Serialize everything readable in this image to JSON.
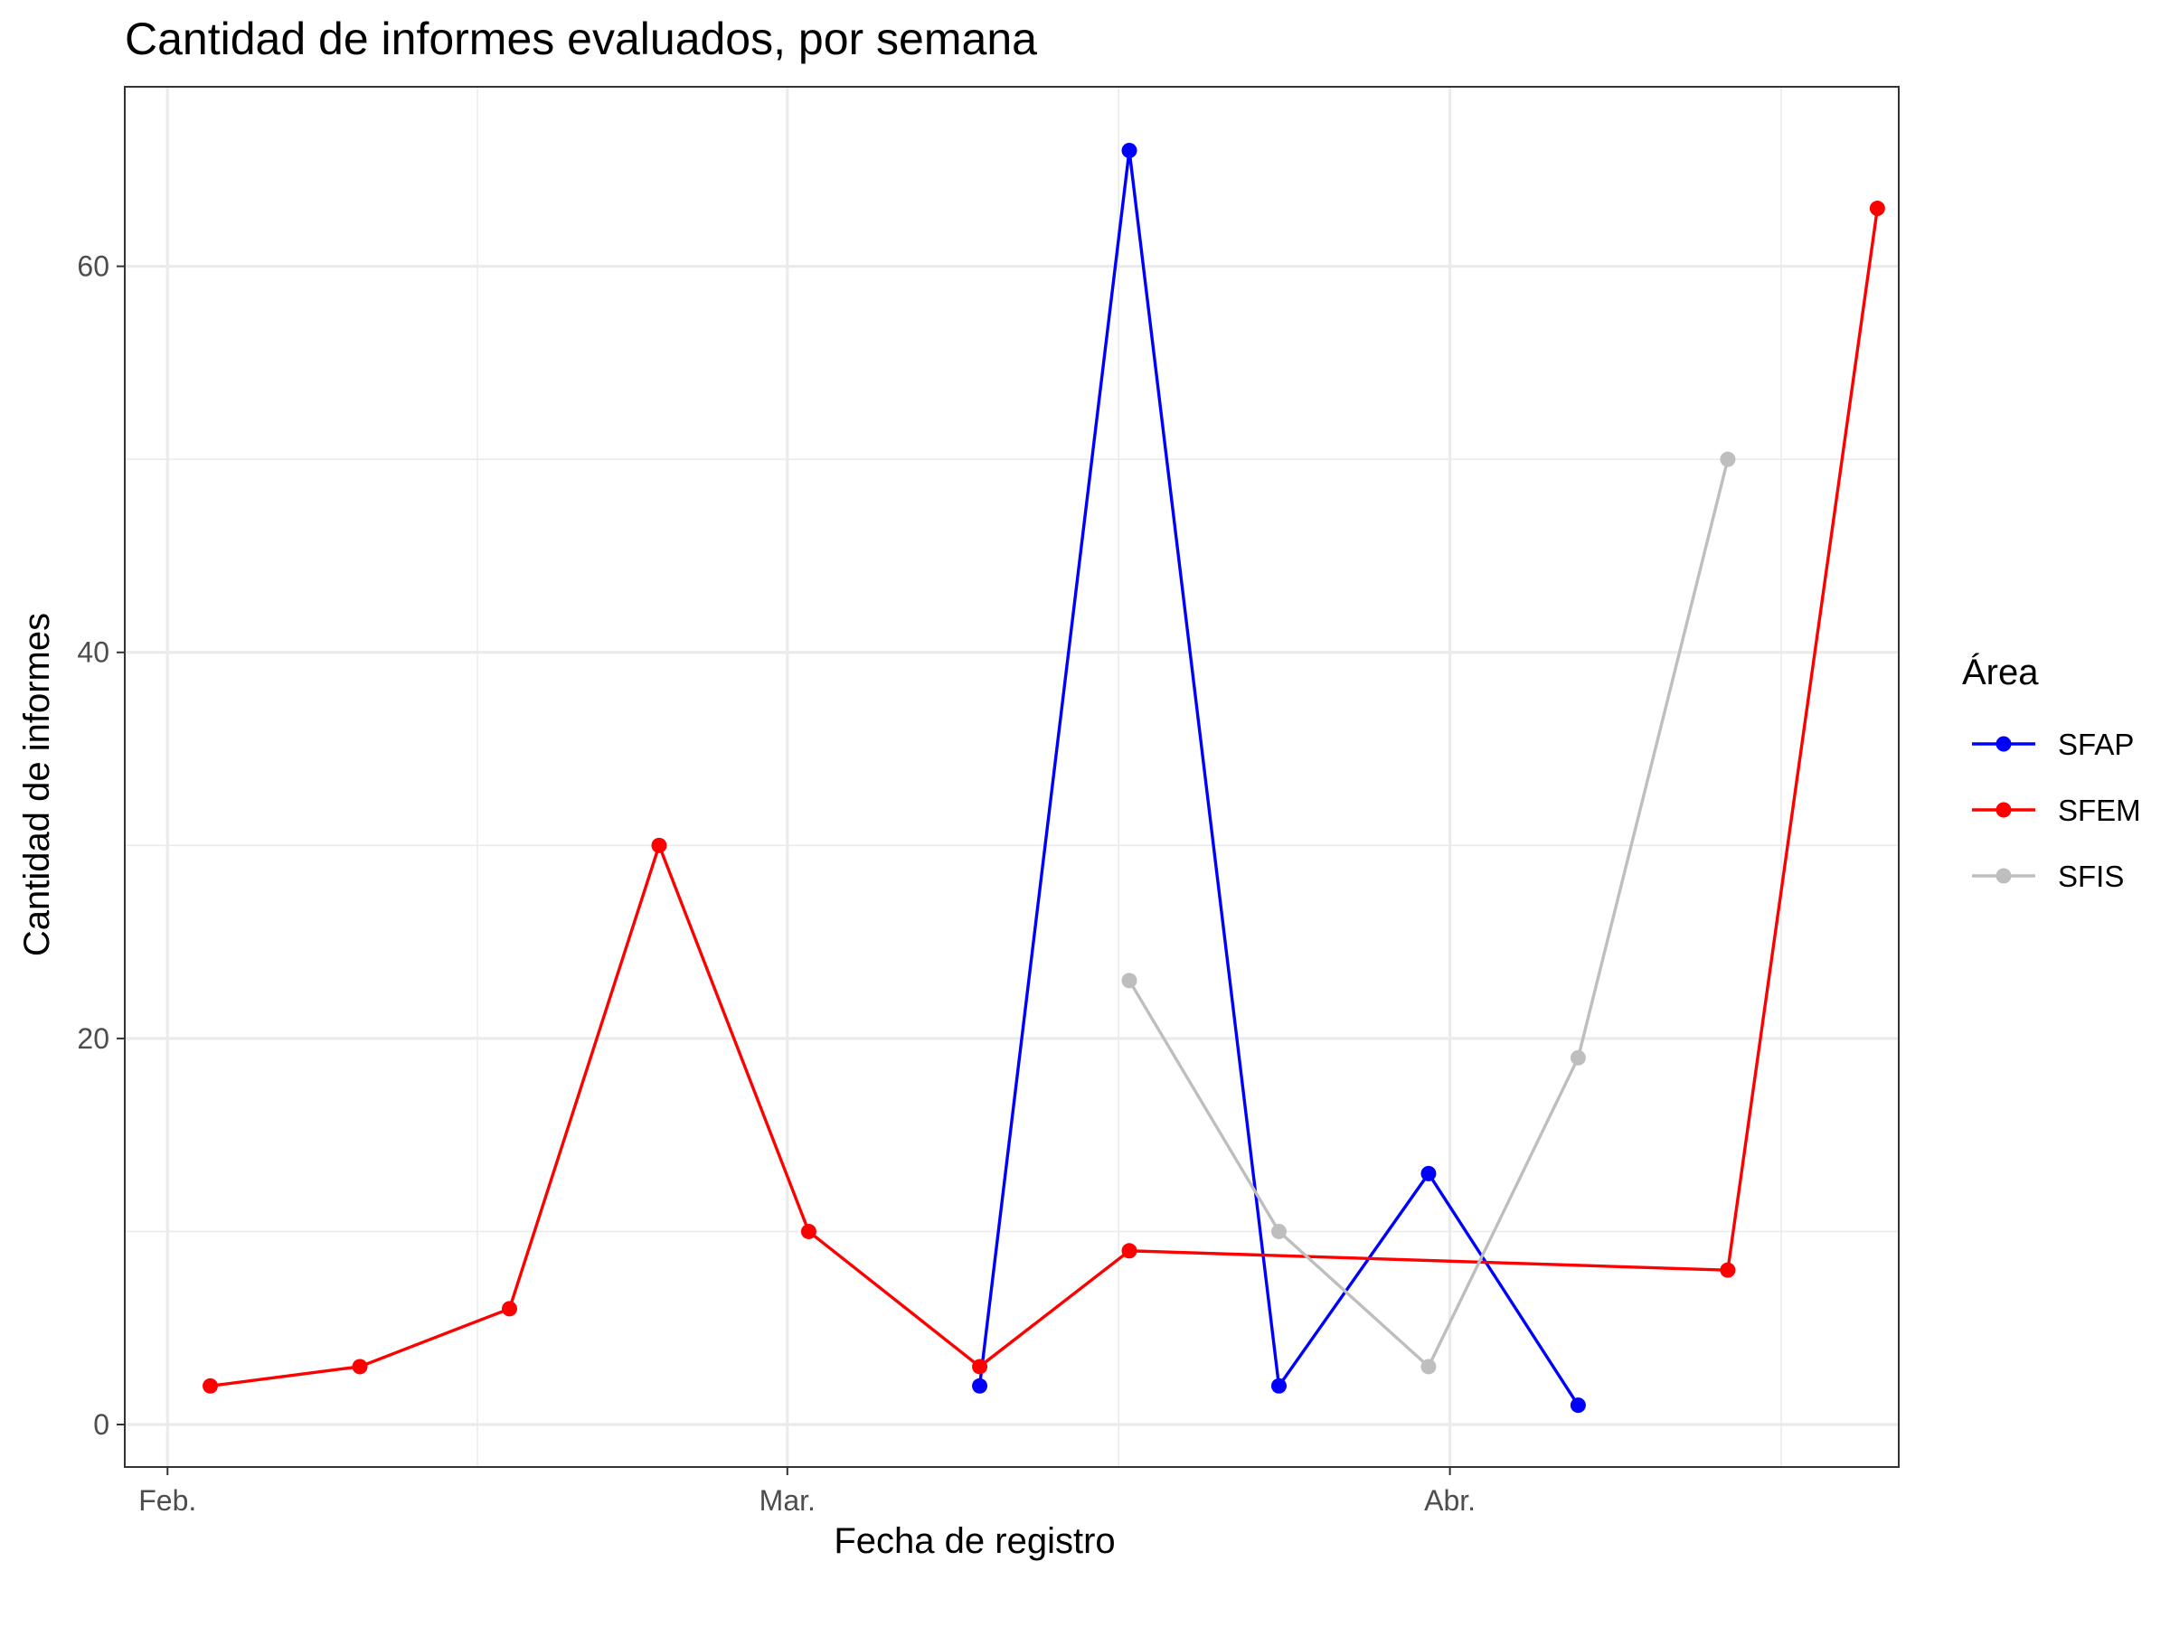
{
  "chart_data": {
    "type": "line",
    "title": "Cantidad de informes evaluados, por semana",
    "xlabel": "Fecha de registro",
    "ylabel": "Cantidad de informes",
    "x_ticks": [
      {
        "date": "2024-02-01",
        "label": "Feb."
      },
      {
        "date": "2024-03-01",
        "label": "Mar."
      },
      {
        "date": "2024-04-01",
        "label": "Abr."
      }
    ],
    "x_range": [
      "2024-01-30",
      "2024-04-22"
    ],
    "y_ticks": [
      0,
      20,
      40,
      60
    ],
    "ylim": [
      -2.2,
      69.3
    ],
    "grid": true,
    "legend": {
      "title": "Área",
      "position": "right"
    },
    "series": [
      {
        "name": "SFAP",
        "color": "#0000FF",
        "points": [
          {
            "x": "2024-03-10",
            "y": 2
          },
          {
            "x": "2024-03-17",
            "y": 66
          },
          {
            "x": "2024-03-24",
            "y": 2
          },
          {
            "x": "2024-03-31",
            "y": 13
          },
          {
            "x": "2024-04-07",
            "y": 1
          }
        ]
      },
      {
        "name": "SFEM",
        "color": "#FF0000",
        "points": [
          {
            "x": "2024-02-03",
            "y": 2
          },
          {
            "x": "2024-02-10",
            "y": 3
          },
          {
            "x": "2024-02-17",
            "y": 6
          },
          {
            "x": "2024-02-24",
            "y": 30
          },
          {
            "x": "2024-03-02",
            "y": 10
          },
          {
            "x": "2024-03-10",
            "y": 3
          },
          {
            "x": "2024-03-17",
            "y": 9
          },
          {
            "x": "2024-04-14",
            "y": 8
          },
          {
            "x": "2024-04-21",
            "y": 63
          }
        ]
      },
      {
        "name": "SFIS",
        "color": "#BEBEBE",
        "points": [
          {
            "x": "2024-03-17",
            "y": 23
          },
          {
            "x": "2024-03-24",
            "y": 10
          },
          {
            "x": "2024-03-31",
            "y": 3
          },
          {
            "x": "2024-04-07",
            "y": 19
          },
          {
            "x": "2024-04-14",
            "y": 50
          }
        ]
      }
    ]
  }
}
